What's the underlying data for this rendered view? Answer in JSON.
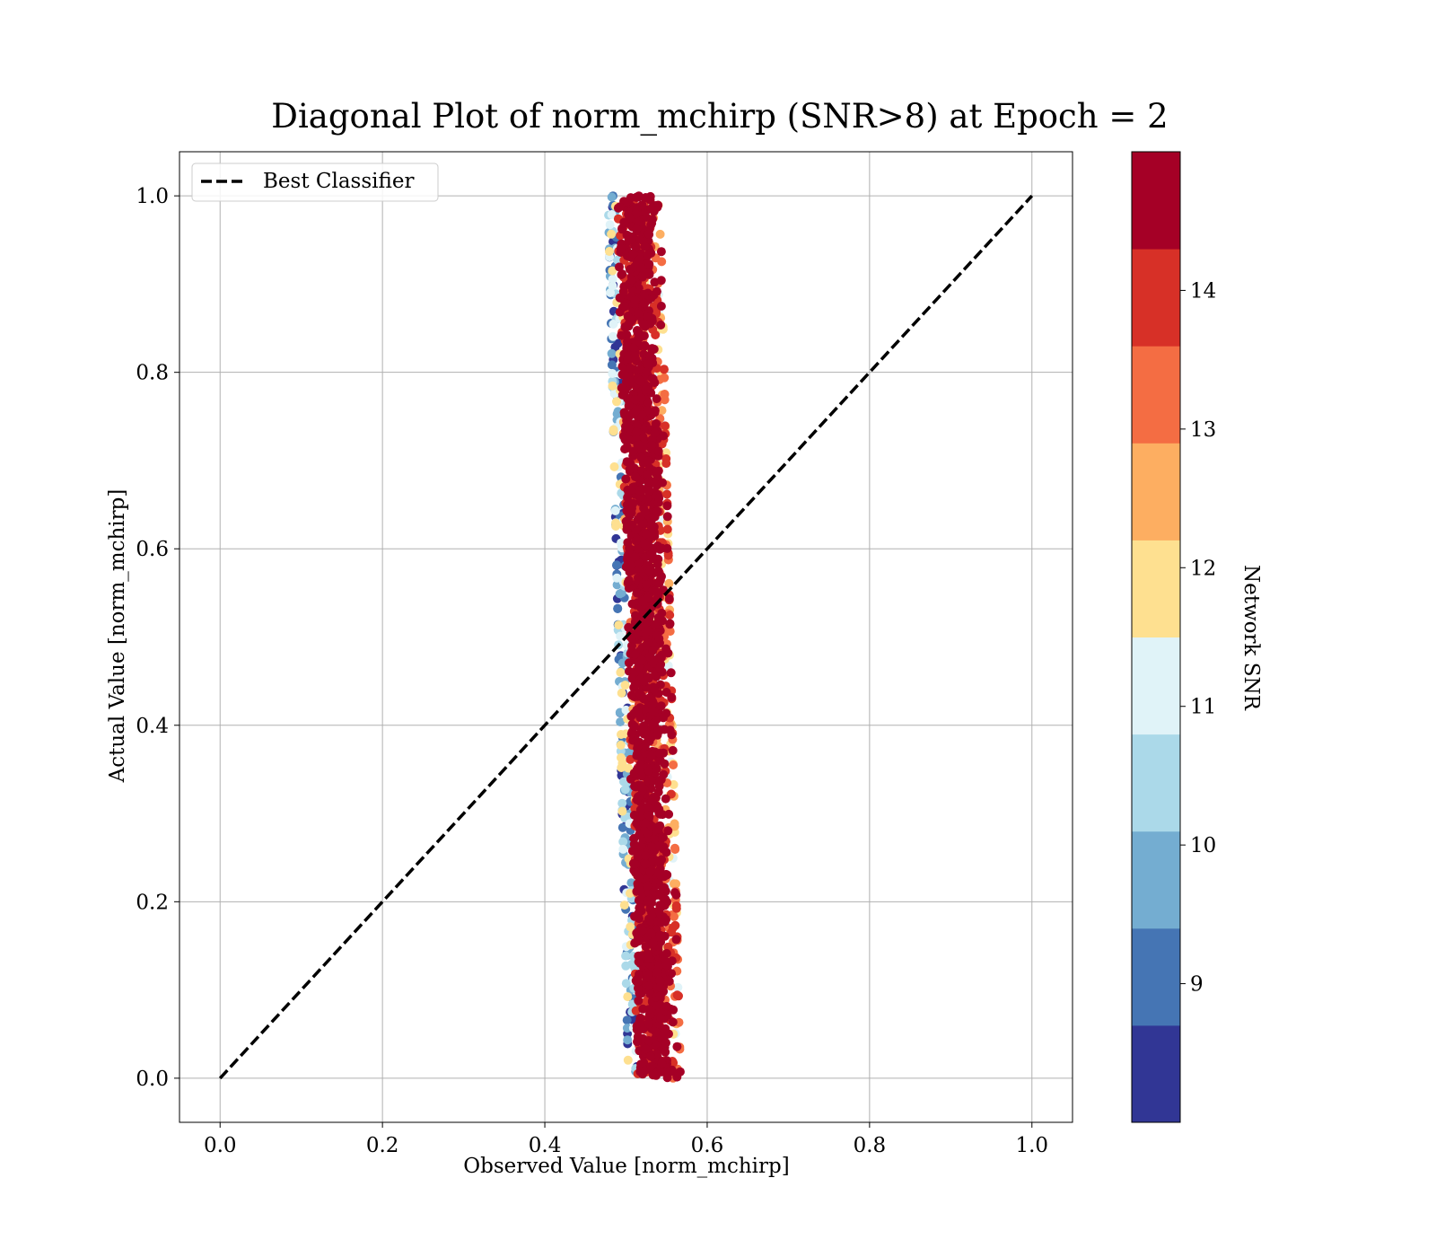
{
  "chart_data": {
    "type": "scatter",
    "title": "Diagonal Plot of norm_mchirp (SNR>8) at Epoch = 2",
    "xlabel": "Observed Value [norm_mchirp]",
    "ylabel": "Actual Value [norm_mchirp]",
    "xlim": [
      -0.05,
      1.05
    ],
    "ylim": [
      -0.05,
      1.05
    ],
    "xticks": [
      "0.0",
      "0.2",
      "0.4",
      "0.6",
      "0.8",
      "1.0"
    ],
    "yticks": [
      "0.0",
      "0.2",
      "0.4",
      "0.6",
      "0.8",
      "1.0"
    ],
    "grid": true,
    "legend": {
      "placement": "upper-left",
      "entries": [
        "Best Classifier"
      ]
    },
    "series": [
      {
        "name": "Best Classifier",
        "kind": "line",
        "style": "dashed",
        "color": "#000000",
        "x": [
          0.0,
          1.0
        ],
        "y": [
          0.0,
          1.0
        ]
      }
    ],
    "scatter_cloud": {
      "description_of_shape": "dense vertical band of points",
      "x_center_at_y0": 0.535,
      "x_center_at_y1": 0.51,
      "x_halfwidth": 0.032,
      "y_range": [
        0.0,
        1.0
      ],
      "point_count": 2600,
      "color_by": "Network SNR"
    },
    "colorbar": {
      "label": "Network SNR",
      "range": [
        8,
        15
      ],
      "ticks": [
        "9",
        "10",
        "11",
        "12",
        "13",
        "14"
      ],
      "tick_values": [
        9,
        10,
        11,
        12,
        13,
        14
      ],
      "colors": [
        "#313695",
        "#4575b4",
        "#74add1",
        "#abd9e9",
        "#e0f3f8",
        "#fee090",
        "#fdae61",
        "#f46d43",
        "#d73027",
        "#a50026"
      ]
    }
  }
}
